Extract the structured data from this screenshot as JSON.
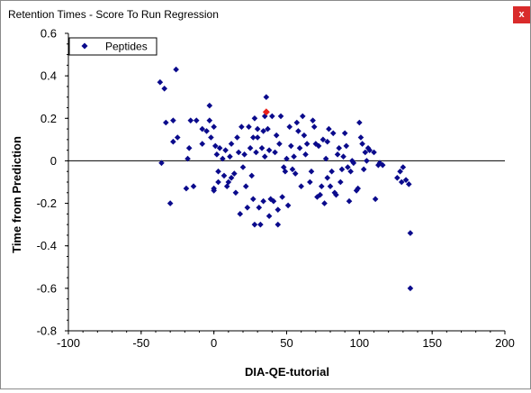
{
  "window": {
    "title": "Retention Times - Score To Run Regression",
    "close_label": "x"
  },
  "colors": {
    "point": "#0a0a8c",
    "highlight": "#e8211b",
    "zero_line": "#000000"
  },
  "chart_data": {
    "type": "scatter",
    "title": "",
    "xlabel": "DIA-QE-tutorial",
    "ylabel": "Time from Prediction",
    "xlim": [
      -100,
      200
    ],
    "ylim": [
      -0.8,
      0.6
    ],
    "xticks": [
      -100,
      -50,
      0,
      50,
      100,
      150,
      200
    ],
    "yticks": [
      -0.8,
      -0.6,
      -0.4,
      -0.2,
      0,
      0.2,
      0.4,
      0.6
    ],
    "ytick_labels": [
      "-0.8",
      "-0.6",
      "-0.4",
      "-0.2",
      "0",
      "0.2",
      "0.4",
      "0.6"
    ],
    "xtick_labels": [
      "-100",
      "-50",
      "0",
      "50",
      "100",
      "150",
      "200"
    ],
    "grid": false,
    "legend": {
      "position": "top-left",
      "entries": [
        "Peptides"
      ]
    },
    "reference_line_y": 0,
    "series": [
      {
        "name": "Peptides",
        "points": [
          [
            -37,
            0.37
          ],
          [
            -34,
            0.34
          ],
          [
            -26,
            0.43
          ],
          [
            -33,
            0.18
          ],
          [
            -28,
            0.19
          ],
          [
            -28,
            0.09
          ],
          [
            -25,
            0.11
          ],
          [
            -36,
            -0.01
          ],
          [
            -30,
            -0.2
          ],
          [
            -17,
            0.06
          ],
          [
            -18,
            0.01
          ],
          [
            -16,
            0.19
          ],
          [
            -14,
            -0.12
          ],
          [
            -12,
            0.19
          ],
          [
            -19,
            -0.13
          ],
          [
            -8,
            0.15
          ],
          [
            -8,
            0.08
          ],
          [
            -5,
            0.14
          ],
          [
            -3,
            0.26
          ],
          [
            -3,
            0.19
          ],
          [
            -2,
            0.11
          ],
          [
            0,
            0.16
          ],
          [
            0,
            -0.13
          ],
          [
            0,
            -0.14
          ],
          [
            1,
            0.07
          ],
          [
            2,
            0.03
          ],
          [
            3,
            -0.05
          ],
          [
            3,
            -0.1
          ],
          [
            4,
            0.06
          ],
          [
            6,
            0.01
          ],
          [
            7,
            -0.07
          ],
          [
            8,
            0.05
          ],
          [
            9,
            -0.12
          ],
          [
            10,
            -0.1
          ],
          [
            11,
            0.02
          ],
          [
            12,
            0.08
          ],
          [
            12,
            -0.08
          ],
          [
            14,
            -0.06
          ],
          [
            15,
            -0.15
          ],
          [
            16,
            0.11
          ],
          [
            17,
            0.04
          ],
          [
            18,
            -0.25
          ],
          [
            19,
            0.16
          ],
          [
            20,
            -0.03
          ],
          [
            21,
            0.03
          ],
          [
            22,
            -0.12
          ],
          [
            23,
            -0.22
          ],
          [
            24,
            0.16
          ],
          [
            25,
            0.06
          ],
          [
            26,
            -0.07
          ],
          [
            27,
            0.11
          ],
          [
            27,
            -0.18
          ],
          [
            28,
            0.2
          ],
          [
            28,
            -0.3
          ],
          [
            29,
            0.04
          ],
          [
            30,
            0.15
          ],
          [
            30,
            0.11
          ],
          [
            31,
            -0.22
          ],
          [
            32,
            -0.3
          ],
          [
            33,
            0.06
          ],
          [
            34,
            0.14
          ],
          [
            34,
            -0.19
          ],
          [
            35,
            0.02
          ],
          [
            35,
            0.21
          ],
          [
            36,
            0.3
          ],
          [
            37,
            0.15
          ],
          [
            38,
            0.05
          ],
          [
            38,
            -0.26
          ],
          [
            39,
            -0.18
          ],
          [
            40,
            0.21
          ],
          [
            41,
            -0.19
          ],
          [
            42,
            0.04
          ],
          [
            43,
            0.12
          ],
          [
            44,
            -0.3
          ],
          [
            44,
            -0.23
          ],
          [
            45,
            0.08
          ],
          [
            46,
            0.21
          ],
          [
            47,
            -0.17
          ],
          [
            48,
            -0.03
          ],
          [
            49,
            -0.05
          ],
          [
            50,
            0.01
          ],
          [
            51,
            -0.21
          ],
          [
            52,
            0.16
          ],
          [
            53,
            0.07
          ],
          [
            54,
            -0.04
          ],
          [
            55,
            0.02
          ],
          [
            56,
            -0.06
          ],
          [
            57,
            0.18
          ],
          [
            58,
            0.14
          ],
          [
            59,
            0.06
          ],
          [
            60,
            -0.12
          ],
          [
            61,
            0.21
          ],
          [
            62,
            0.12
          ],
          [
            63,
            0.03
          ],
          [
            64,
            0.08
          ],
          [
            66,
            -0.1
          ],
          [
            67,
            -0.05
          ],
          [
            68,
            0.19
          ],
          [
            69,
            0.16
          ],
          [
            70,
            0.08
          ],
          [
            71,
            -0.17
          ],
          [
            72,
            0.07
          ],
          [
            73,
            -0.16
          ],
          [
            74,
            -0.12
          ],
          [
            75,
            0.1
          ],
          [
            76,
            -0.2
          ],
          [
            77,
            0.01
          ],
          [
            78,
            0.09
          ],
          [
            78,
            -0.08
          ],
          [
            79,
            0.15
          ],
          [
            80,
            -0.12
          ],
          [
            81,
            -0.05
          ],
          [
            82,
            0.13
          ],
          [
            83,
            -0.15
          ],
          [
            84,
            -0.16
          ],
          [
            85,
            0.03
          ],
          [
            86,
            0.06
          ],
          [
            87,
            -0.1
          ],
          [
            88,
            -0.04
          ],
          [
            89,
            0.02
          ],
          [
            90,
            0.13
          ],
          [
            91,
            0.07
          ],
          [
            92,
            -0.03
          ],
          [
            93,
            -0.19
          ],
          [
            94,
            -0.05
          ],
          [
            95,
            0.0
          ],
          [
            96,
            -0.01
          ],
          [
            98,
            -0.14
          ],
          [
            99,
            -0.13
          ],
          [
            100,
            0.18
          ],
          [
            101,
            0.11
          ],
          [
            102,
            0.08
          ],
          [
            103,
            -0.04
          ],
          [
            104,
            0.04
          ],
          [
            105,
            0.0
          ],
          [
            106,
            0.06
          ],
          [
            107,
            0.05
          ],
          [
            110,
            0.04
          ],
          [
            111,
            -0.18
          ],
          [
            113,
            -0.02
          ],
          [
            114,
            -0.01
          ],
          [
            116,
            -0.02
          ],
          [
            126,
            -0.08
          ],
          [
            128,
            -0.05
          ],
          [
            129,
            -0.1
          ],
          [
            130,
            -0.03
          ],
          [
            132,
            -0.09
          ],
          [
            134,
            -0.11
          ],
          [
            135,
            -0.6
          ],
          [
            135,
            -0.34
          ]
        ]
      }
    ],
    "highlight_point": [
      36,
      0.23
    ]
  }
}
